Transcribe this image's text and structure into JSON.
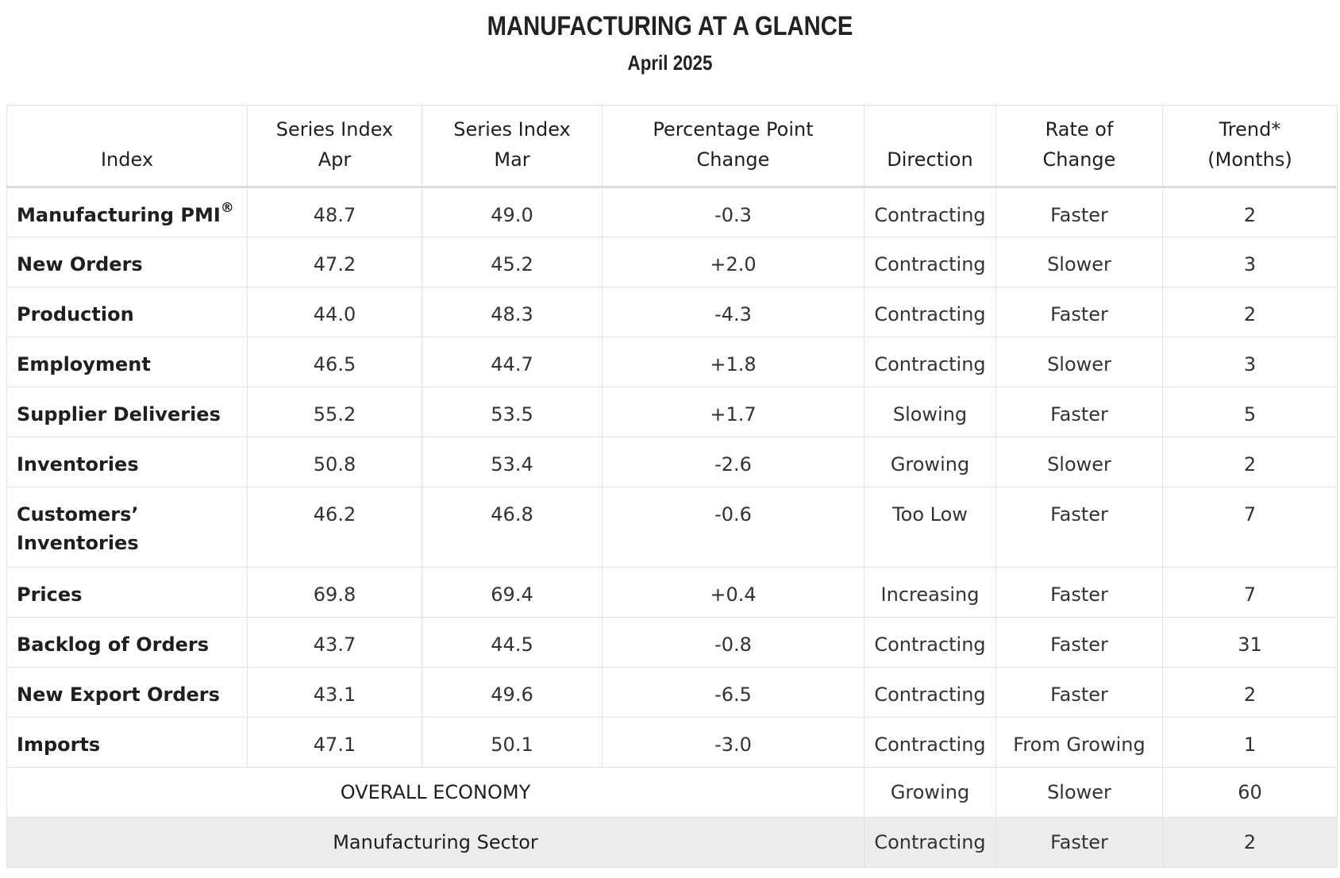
{
  "header": {
    "title": "MANUFACTURING AT A GLANCE",
    "subtitle": "April 2025"
  },
  "table": {
    "columns": [
      {
        "line1": "",
        "line2": "Index"
      },
      {
        "line1": "Series Index",
        "line2": "Apr"
      },
      {
        "line1": "Series Index",
        "line2": "Mar"
      },
      {
        "line1": "Percentage Point",
        "line2": "Change"
      },
      {
        "line1": "",
        "line2": "Direction"
      },
      {
        "line1": "Rate of",
        "line2": "Change"
      },
      {
        "line1": "Trend*",
        "line2": "(Months)"
      }
    ],
    "rows": [
      {
        "index": "Manufacturing PMI",
        "apr": "48.7",
        "mar": "49.0",
        "change": "-0.3",
        "direction": "Contracting",
        "rate": "Faster",
        "trend": "2"
      },
      {
        "index": "New Orders",
        "apr": "47.2",
        "mar": "45.2",
        "change": "+2.0",
        "direction": "Contracting",
        "rate": "Slower",
        "trend": "3"
      },
      {
        "index": "Production",
        "apr": "44.0",
        "mar": "48.3",
        "change": "-4.3",
        "direction": "Contracting",
        "rate": "Faster",
        "trend": "2"
      },
      {
        "index": "Employment",
        "apr": "46.5",
        "mar": "44.7",
        "change": "+1.8",
        "direction": "Contracting",
        "rate": "Slower",
        "trend": "3"
      },
      {
        "index": "Supplier Deliveries",
        "apr": "55.2",
        "mar": "53.5",
        "change": "+1.7",
        "direction": "Slowing",
        "rate": "Faster",
        "trend": "5"
      },
      {
        "index": "Inventories",
        "apr": "50.8",
        "mar": "53.4",
        "change": "-2.6",
        "direction": "Growing",
        "rate": "Slower",
        "trend": "2"
      },
      {
        "index_line1": "Customers’",
        "index_line2": "Inventories",
        "apr": "46.2",
        "mar": "46.8",
        "change": "-0.6",
        "direction": "Too Low",
        "rate": "Faster",
        "trend": "7"
      },
      {
        "index": "Prices",
        "apr": "69.8",
        "mar": "69.4",
        "change": "+0.4",
        "direction": "Increasing",
        "rate": "Faster",
        "trend": "7"
      },
      {
        "index": "Backlog of Orders",
        "apr": "43.7",
        "mar": "44.5",
        "change": "-0.8",
        "direction": "Contracting",
        "rate": "Faster",
        "trend": "31"
      },
      {
        "index": "New Export Orders",
        "apr": "43.1",
        "mar": "49.6",
        "change": "-6.5",
        "direction": "Contracting",
        "rate": "Faster",
        "trend": "2"
      },
      {
        "index": "Imports",
        "apr": "47.1",
        "mar": "50.1",
        "change": "-3.0",
        "direction": "Contracting",
        "rate": "From Growing",
        "trend": "1"
      }
    ],
    "pmi_registered_mark": "®",
    "summary": [
      {
        "label": "OVERALL ECONOMY",
        "direction": "Growing",
        "rate": "Slower",
        "trend": "60"
      },
      {
        "label": "Manufacturing Sector",
        "direction": "Contracting",
        "rate": "Faster",
        "trend": "2"
      }
    ]
  }
}
